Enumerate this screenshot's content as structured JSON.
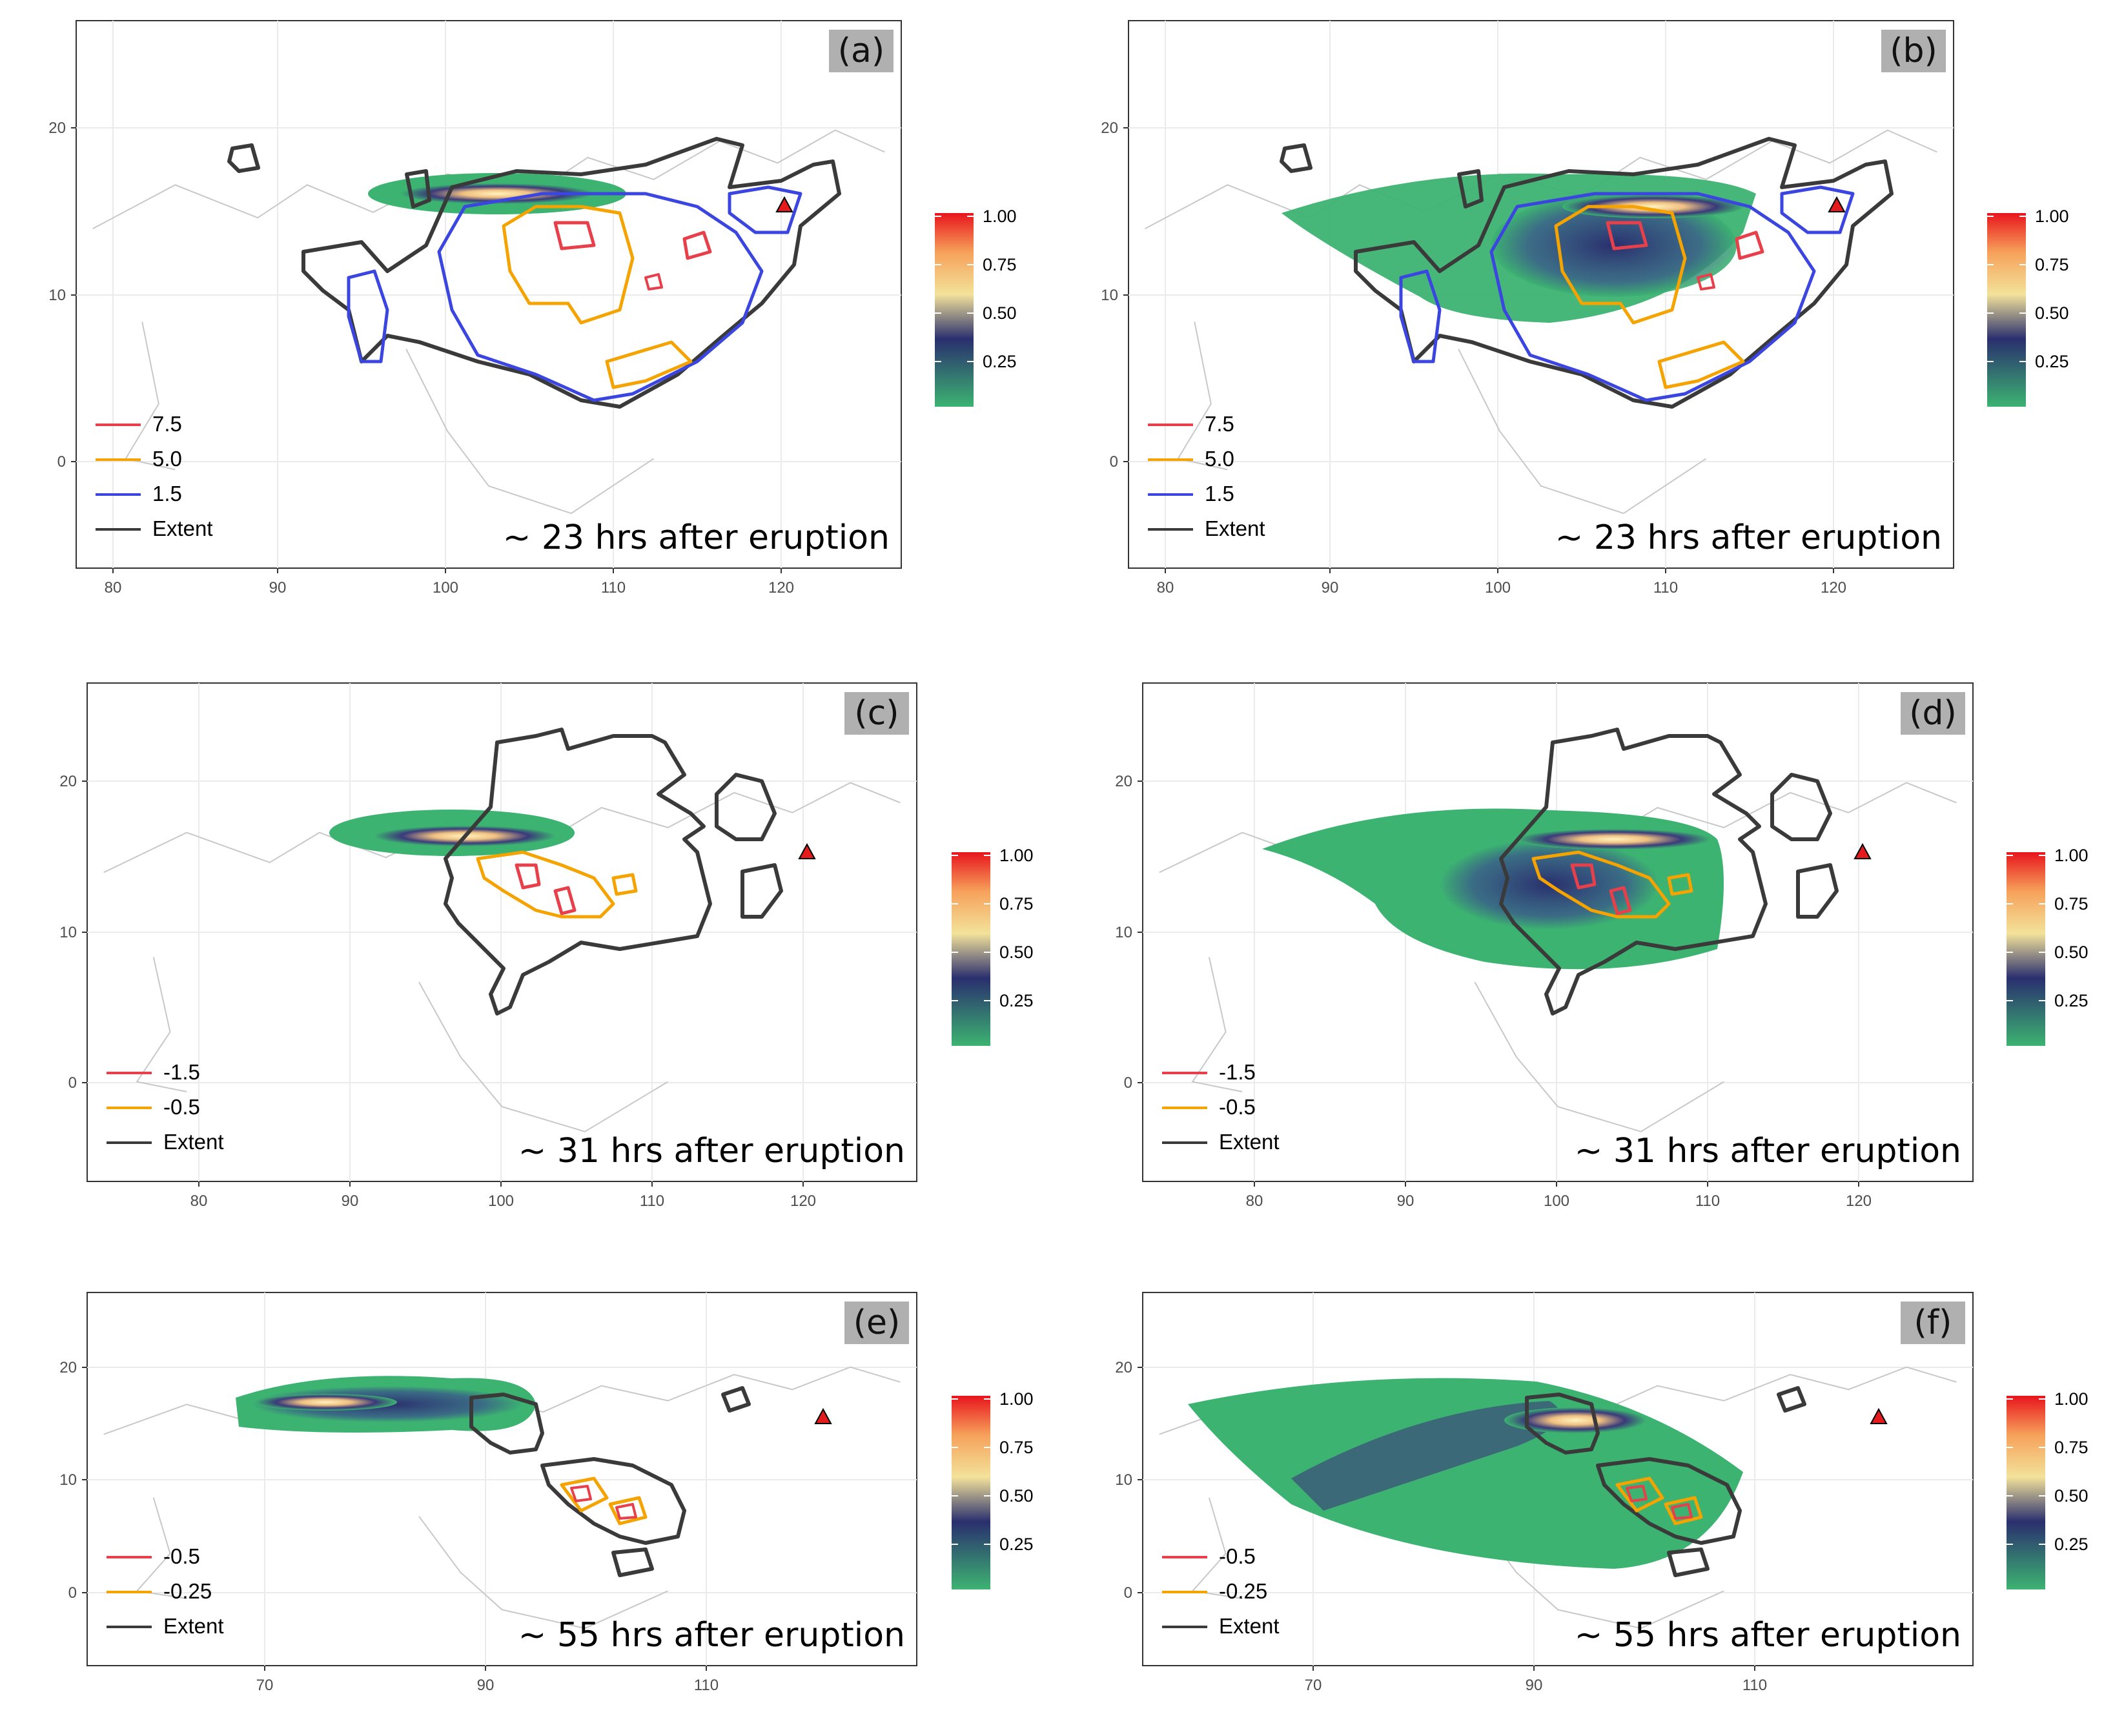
{
  "colors": {
    "level_red": "#e8404a",
    "level_orange": "#f4a300",
    "level_blue": "#3b46e0",
    "extent": "#3a3a3a",
    "grid": "#ebebeb",
    "coast": "#c8c8c8",
    "volcano": "#e41a1c",
    "label_bg": "#b0b0b0"
  },
  "colorbar": {
    "stops": [
      "#3cb371",
      "#2a2f6e",
      "#f3e29a",
      "#f6a05a",
      "#e8141c"
    ],
    "labels": [
      "1.00",
      "0.75",
      "0.50",
      "0.25"
    ]
  },
  "panels": [
    {
      "label": "(a)",
      "annotation": "~ 23 hrs after eruption",
      "x_ticks": [
        "80",
        "90",
        "100",
        "110",
        "120"
      ],
      "y_ticks": [
        "20",
        "10",
        "0"
      ],
      "legend": [
        {
          "label": "7.5",
          "color": "level_red"
        },
        {
          "label": "5.0",
          "color": "level_orange"
        },
        {
          "label": "1.5",
          "color": "level_blue"
        },
        {
          "label": "Extent",
          "color": "extent"
        }
      ]
    },
    {
      "label": "(b)",
      "annotation": "~ 23 hrs after eruption",
      "x_ticks": [
        "80",
        "90",
        "100",
        "110",
        "120"
      ],
      "y_ticks": [
        "20",
        "10",
        "0"
      ],
      "legend": [
        {
          "label": "7.5",
          "color": "level_red"
        },
        {
          "label": "5.0",
          "color": "level_orange"
        },
        {
          "label": "1.5",
          "color": "level_blue"
        },
        {
          "label": "Extent",
          "color": "extent"
        }
      ]
    },
    {
      "label": "(c)",
      "annotation": "~ 31 hrs after eruption",
      "x_ticks": [
        "80",
        "90",
        "100",
        "110",
        "120"
      ],
      "y_ticks": [
        "20",
        "10",
        "0"
      ],
      "legend": [
        {
          "label": "-1.5",
          "color": "level_red"
        },
        {
          "label": "-0.5",
          "color": "level_orange"
        },
        {
          "label": "Extent",
          "color": "extent"
        }
      ]
    },
    {
      "label": "(d)",
      "annotation": "~ 31 hrs after eruption",
      "x_ticks": [
        "80",
        "90",
        "100",
        "110",
        "120"
      ],
      "y_ticks": [
        "20",
        "10",
        "0"
      ],
      "legend": [
        {
          "label": "-1.5",
          "color": "level_red"
        },
        {
          "label": "-0.5",
          "color": "level_orange"
        },
        {
          "label": "Extent",
          "color": "extent"
        }
      ]
    },
    {
      "label": "(e)",
      "annotation": "~ 55 hrs after eruption",
      "x_ticks": [
        "70",
        "90",
        "110"
      ],
      "y_ticks": [
        "20",
        "10",
        "0"
      ],
      "legend": [
        {
          "label": "-0.5",
          "color": "level_red"
        },
        {
          "label": "-0.25",
          "color": "level_orange"
        },
        {
          "label": "Extent",
          "color": "extent"
        }
      ]
    },
    {
      "label": "(f)",
      "annotation": "~ 55 hrs after eruption",
      "x_ticks": [
        "70",
        "90",
        "110"
      ],
      "y_ticks": [
        "20",
        "10",
        "0"
      ],
      "legend": [
        {
          "label": "-0.5",
          "color": "level_red"
        },
        {
          "label": "-0.25",
          "color": "level_orange"
        },
        {
          "label": "Extent",
          "color": "extent"
        }
      ]
    }
  ]
}
